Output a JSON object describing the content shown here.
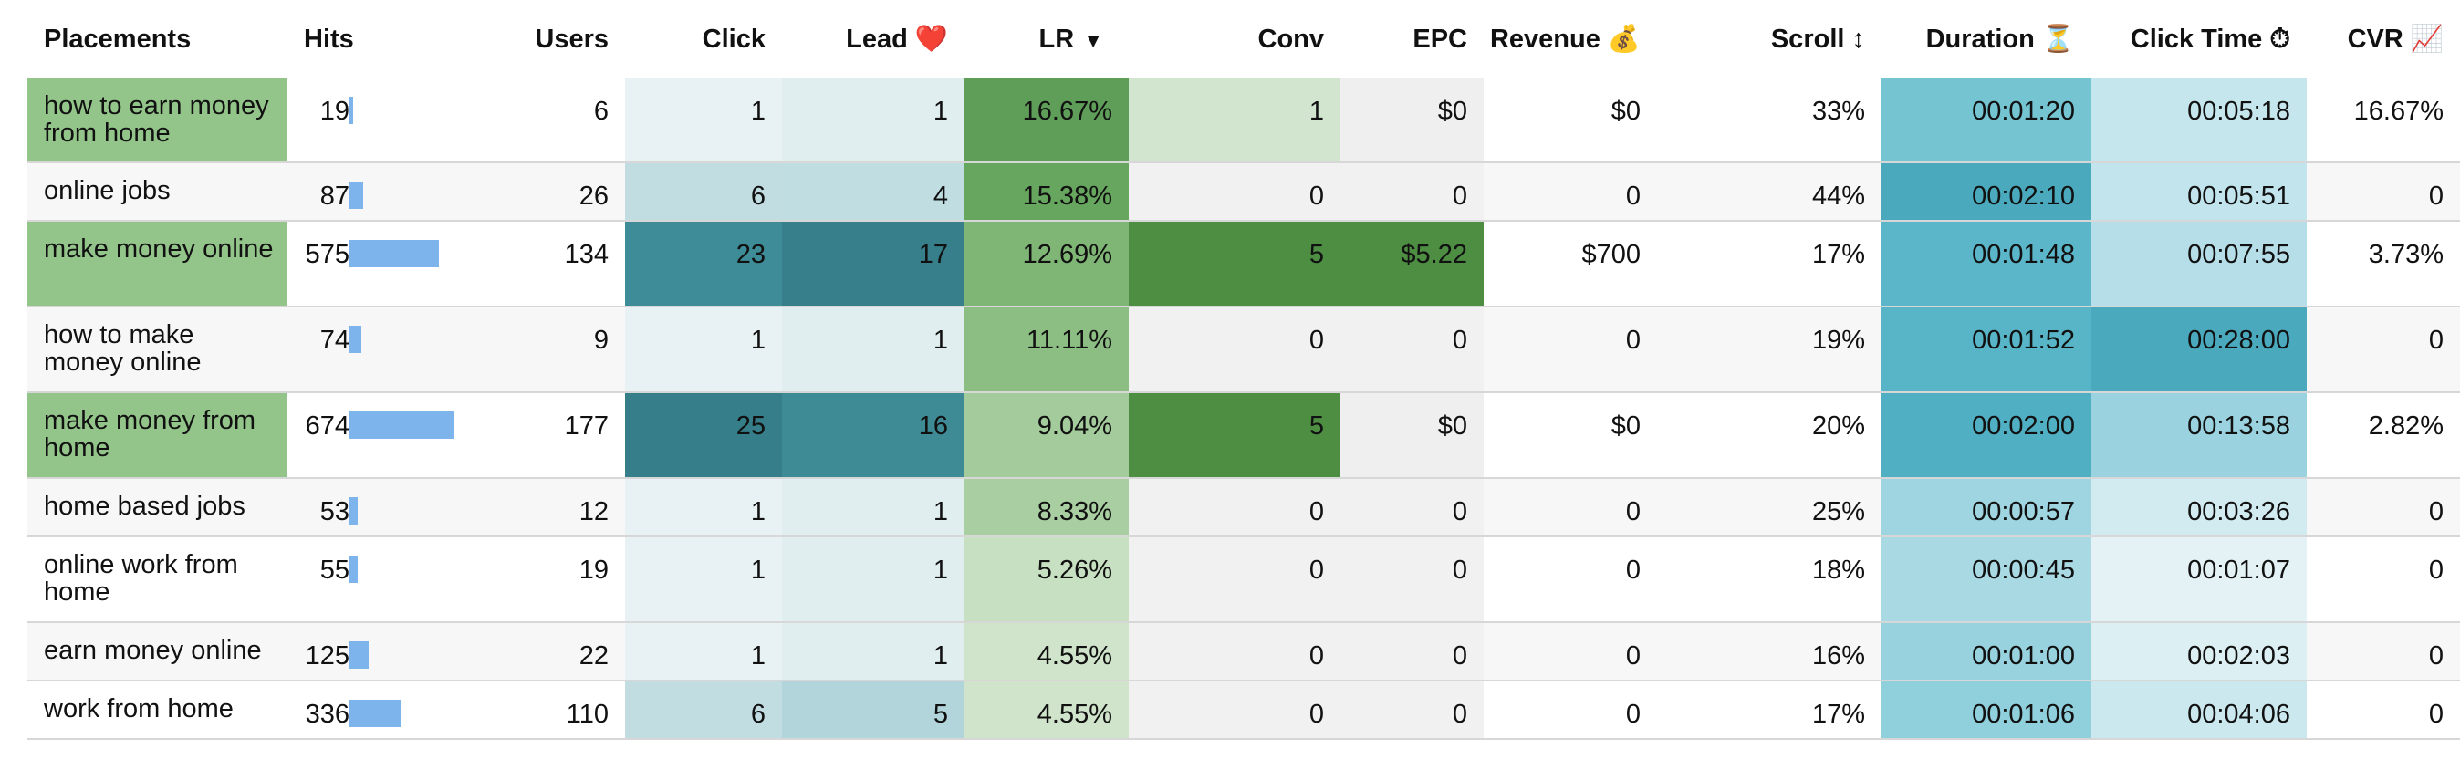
{
  "columns": [
    {
      "key": "placement",
      "label": "Placements"
    },
    {
      "key": "hits",
      "label": "Hits"
    },
    {
      "key": "users",
      "label": "Users"
    },
    {
      "key": "click",
      "label": "Click"
    },
    {
      "key": "lead",
      "label": "Lead ❤️"
    },
    {
      "key": "lr",
      "label": "LR",
      "sort_indicator": "▼"
    },
    {
      "key": "conv",
      "label": "Conv"
    },
    {
      "key": "epc",
      "label": "EPC"
    },
    {
      "key": "revenue",
      "label": "Revenue 💰"
    },
    {
      "key": "scroll",
      "label": "Scroll ↕"
    },
    {
      "key": "duration",
      "label": "Duration ⏳"
    },
    {
      "key": "click_time",
      "label": "Click Time ⏱"
    },
    {
      "key": "cvr",
      "label": "CVR 📈"
    }
  ],
  "colors": {
    "placement_highlight": "#93c58a",
    "hits_bar": "#7eb4ec",
    "row_alt": "#f7f7f7",
    "row_base": "#ffffff",
    "cell_neutral": "#efefef",
    "rule": "#d7d7d7"
  },
  "rows": [
    {
      "placement": "how to earn money from home",
      "placement_highlight": true,
      "hits": "19",
      "hits_bar": 0.028,
      "users": "6",
      "click": "1",
      "lead": "1",
      "lr": "16.67%",
      "conv": "1",
      "epc": "$0",
      "revenue": "$0",
      "scroll": "33%",
      "duration": "00:01:20",
      "click_time": "00:05:18",
      "cvr": "16.67%",
      "cell_colors": {
        "click": "#e8f1f3",
        "lead": "#e1eef0",
        "lr": "#5f9e58",
        "conv": "#d2e5cf",
        "epc": "#efefef",
        "duration": "#74c4d2",
        "click_time": "#c6e6ed"
      }
    },
    {
      "placement": "online jobs",
      "placement_highlight": false,
      "hits": "87",
      "hits_bar": 0.129,
      "users": "26",
      "click": "6",
      "lead": "4",
      "lr": "15.38%",
      "conv": "0",
      "epc": "0",
      "revenue": "0",
      "scroll": "44%",
      "duration": "00:02:10",
      "click_time": "00:05:51",
      "cvr": "0",
      "cell_colors": {
        "click": "#c1dde2",
        "lead": "#c0dde2",
        "lr": "#67a65f",
        "conv": "#f1f1f1",
        "epc": "#f1f1f1",
        "duration": "#4aa9bd",
        "click_time": "#c2e4ec"
      }
    },
    {
      "placement": "make money online",
      "placement_highlight": true,
      "hits": "575",
      "hits_bar": 0.853,
      "users": "134",
      "click": "23",
      "lead": "17",
      "lr": "12.69%",
      "conv": "5",
      "epc": "$5.22",
      "revenue": "$700",
      "scroll": "17%",
      "duration": "00:01:48",
      "click_time": "00:07:55",
      "cvr": "3.73%",
      "cell_colors": {
        "click": "#3e8c97",
        "lead": "#367f8b",
        "lr": "#7fb676",
        "conv": "#4d8e43",
        "epc": "#4d8e43",
        "duration": "#5ab6c8",
        "click_time": "#b6dee8"
      }
    },
    {
      "placement": "how to make money online",
      "placement_highlight": false,
      "hits": "74",
      "hits_bar": 0.11,
      "users": "9",
      "click": "1",
      "lead": "1",
      "lr": "11.11%",
      "conv": "0",
      "epc": "0",
      "revenue": "0",
      "scroll": "19%",
      "duration": "00:01:52",
      "click_time": "00:28:00",
      "cvr": "0",
      "cell_colors": {
        "click": "#e8f1f3",
        "lead": "#e1eef0",
        "lr": "#8cbe84",
        "conv": "#f1f1f1",
        "epc": "#f1f1f1",
        "duration": "#58b5c7",
        "click_time": "#4aa9bd"
      }
    },
    {
      "placement": "make money from home",
      "placement_highlight": true,
      "hits": "674",
      "hits_bar": 1.0,
      "users": "177",
      "click": "25",
      "lead": "16",
      "lr": "9.04%",
      "conv": "5",
      "epc": "$0",
      "revenue": "$0",
      "scroll": "20%",
      "duration": "00:02:00",
      "click_time": "00:13:58",
      "cvr": "2.82%",
      "cell_colors": {
        "click": "#357e8a",
        "lead": "#3e8b96",
        "lr": "#a3cb9b",
        "conv": "#4d8e43",
        "epc": "#efefef",
        "duration": "#50afc2",
        "click_time": "#9ad3df"
      }
    },
    {
      "placement": "home based jobs",
      "placement_highlight": false,
      "hits": "53",
      "hits_bar": 0.079,
      "users": "12",
      "click": "1",
      "lead": "1",
      "lr": "8.33%",
      "conv": "0",
      "epc": "0",
      "revenue": "0",
      "scroll": "25%",
      "duration": "00:00:57",
      "click_time": "00:03:26",
      "cvr": "0",
      "cell_colors": {
        "click": "#e8f1f3",
        "lead": "#e1eef0",
        "lr": "#a9cea1",
        "conv": "#f1f1f1",
        "epc": "#f1f1f1",
        "duration": "#9fd5e0",
        "click_time": "#d2ebf0"
      }
    },
    {
      "placement": "online work from home",
      "placement_highlight": false,
      "hits": "55",
      "hits_bar": 0.082,
      "users": "19",
      "click": "1",
      "lead": "1",
      "lr": "5.26%",
      "conv": "0",
      "epc": "0",
      "revenue": "0",
      "scroll": "18%",
      "duration": "00:00:45",
      "click_time": "00:01:07",
      "cvr": "0",
      "cell_colors": {
        "click": "#e8f1f3",
        "lead": "#e1eef0",
        "lr": "#c7e0c1",
        "conv": "#f1f1f1",
        "epc": "#f1f1f1",
        "duration": "#a9d9e3",
        "click_time": "#e4f2f5"
      }
    },
    {
      "placement": "earn money online",
      "placement_highlight": false,
      "hits": "125",
      "hits_bar": 0.185,
      "users": "22",
      "click": "1",
      "lead": "1",
      "lr": "4.55%",
      "conv": "0",
      "epc": "0",
      "revenue": "0",
      "scroll": "16%",
      "duration": "00:01:00",
      "click_time": "00:02:03",
      "cvr": "0",
      "cell_colors": {
        "click": "#e8f1f3",
        "lead": "#e1eef0",
        "lr": "#cfe4ca",
        "conv": "#f1f1f1",
        "epc": "#f1f1f1",
        "duration": "#98d2de",
        "click_time": "#dceff3"
      }
    },
    {
      "placement": "work from home",
      "placement_highlight": false,
      "hits": "336",
      "hits_bar": 0.498,
      "users": "110",
      "click": "6",
      "lead": "5",
      "lr": "4.55%",
      "conv": "0",
      "epc": "0",
      "revenue": "0",
      "scroll": "17%",
      "duration": "00:01:06",
      "click_time": "00:04:06",
      "cvr": "0",
      "cell_colors": {
        "click": "#c1dde2",
        "lead": "#b1d5db",
        "lr": "#cfe4ca",
        "conv": "#f1f1f1",
        "epc": "#f1f1f1",
        "duration": "#90cfdc",
        "click_time": "#cce8ef"
      }
    }
  ]
}
